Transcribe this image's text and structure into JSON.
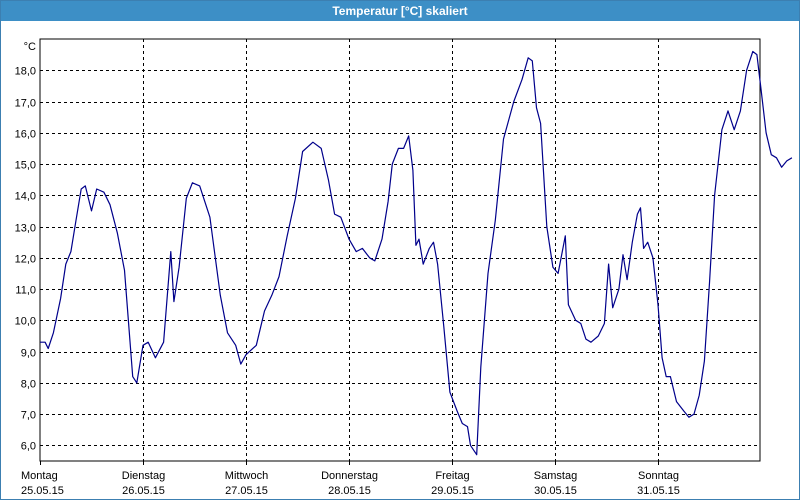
{
  "window": {
    "title": "Temperatur [°C] skaliert"
  },
  "colors": {
    "titlebar": "#3d8fc6",
    "line": "#00008b",
    "grid": "#000000"
  },
  "chart_data": {
    "type": "line",
    "title": "Temperatur [°C] skaliert",
    "ylabel": "°C",
    "ylim": [
      5.5,
      19.0
    ],
    "yticks": [
      6.0,
      7.0,
      8.0,
      9.0,
      10.0,
      11.0,
      12.0,
      13.0,
      14.0,
      15.0,
      16.0,
      17.0,
      18.0
    ],
    "ytick_labels": [
      "6,0",
      "7,0",
      "8,0",
      "9,0",
      "10,0",
      "11,0",
      "12,0",
      "13,0",
      "14,0",
      "15,0",
      "16,0",
      "17,0",
      "18,0"
    ],
    "xlim": [
      0,
      7
    ],
    "grid": true,
    "xticks": [
      {
        "day": "Montag",
        "date": "25.05.15"
      },
      {
        "day": "Dienstag",
        "date": "26.05.15"
      },
      {
        "day": "Mittwoch",
        "date": "27.05.15"
      },
      {
        "day": "Donnerstag",
        "date": "28.05.15"
      },
      {
        "day": "Freitag",
        "date": "29.05.15"
      },
      {
        "day": "Samstag",
        "date": "30.05.15"
      },
      {
        "day": "Sonntag",
        "date": "31.05.15"
      }
    ],
    "series": [
      {
        "points": [
          [
            0.0,
            9.3
          ],
          [
            0.05,
            9.3
          ],
          [
            0.08,
            9.1
          ],
          [
            0.13,
            9.6
          ],
          [
            0.2,
            10.7
          ],
          [
            0.25,
            11.8
          ],
          [
            0.3,
            12.2
          ],
          [
            0.35,
            13.2
          ],
          [
            0.4,
            14.2
          ],
          [
            0.44,
            14.3
          ],
          [
            0.5,
            13.5
          ],
          [
            0.55,
            14.2
          ],
          [
            0.62,
            14.1
          ],
          [
            0.68,
            13.7
          ],
          [
            0.75,
            12.8
          ],
          [
            0.82,
            11.6
          ],
          [
            0.9,
            8.2
          ],
          [
            0.94,
            8.0
          ],
          [
            1.0,
            9.2
          ],
          [
            1.05,
            9.3
          ],
          [
            1.12,
            8.8
          ],
          [
            1.2,
            9.3
          ],
          [
            1.27,
            12.2
          ],
          [
            1.3,
            10.6
          ],
          [
            1.35,
            11.7
          ],
          [
            1.42,
            13.9
          ],
          [
            1.48,
            14.4
          ],
          [
            1.55,
            14.3
          ],
          [
            1.65,
            13.3
          ],
          [
            1.75,
            10.8
          ],
          [
            1.82,
            9.6
          ],
          [
            1.9,
            9.2
          ],
          [
            1.95,
            8.6
          ],
          [
            2.0,
            8.9
          ],
          [
            2.1,
            9.2
          ],
          [
            2.18,
            10.3
          ],
          [
            2.25,
            10.8
          ],
          [
            2.32,
            11.4
          ],
          [
            2.4,
            12.7
          ],
          [
            2.48,
            13.9
          ],
          [
            2.55,
            15.4
          ],
          [
            2.65,
            15.7
          ],
          [
            2.73,
            15.5
          ],
          [
            2.8,
            14.5
          ],
          [
            2.86,
            13.4
          ],
          [
            2.92,
            13.3
          ],
          [
            3.0,
            12.6
          ],
          [
            3.07,
            12.2
          ],
          [
            3.13,
            12.3
          ],
          [
            3.2,
            12.0
          ],
          [
            3.25,
            11.9
          ],
          [
            3.32,
            12.6
          ],
          [
            3.38,
            13.8
          ],
          [
            3.42,
            15.0
          ],
          [
            3.48,
            15.5
          ],
          [
            3.53,
            15.5
          ],
          [
            3.58,
            15.9
          ],
          [
            3.62,
            14.8
          ],
          [
            3.65,
            12.4
          ],
          [
            3.68,
            12.6
          ],
          [
            3.72,
            11.8
          ],
          [
            3.78,
            12.3
          ],
          [
            3.82,
            12.5
          ],
          [
            3.86,
            11.8
          ],
          [
            3.92,
            9.8
          ],
          [
            3.98,
            7.7
          ],
          [
            4.05,
            7.1
          ],
          [
            4.1,
            6.7
          ],
          [
            4.15,
            6.6
          ],
          [
            4.18,
            6.0
          ],
          [
            4.24,
            5.7
          ],
          [
            4.28,
            8.5
          ],
          [
            4.35,
            11.5
          ],
          [
            4.42,
            13.2
          ],
          [
            4.5,
            15.8
          ],
          [
            4.6,
            17.0
          ],
          [
            4.68,
            17.7
          ],
          [
            4.74,
            18.4
          ],
          [
            4.78,
            18.3
          ],
          [
            4.82,
            16.8
          ],
          [
            4.86,
            16.3
          ],
          [
            4.92,
            13.0
          ],
          [
            4.98,
            11.7
          ],
          [
            5.03,
            11.5
          ],
          [
            5.1,
            12.7
          ],
          [
            5.13,
            10.5
          ],
          [
            5.2,
            10.0
          ],
          [
            5.25,
            9.9
          ],
          [
            5.3,
            9.4
          ],
          [
            5.35,
            9.3
          ],
          [
            5.42,
            9.5
          ],
          [
            5.48,
            9.9
          ],
          [
            5.52,
            11.8
          ],
          [
            5.56,
            10.4
          ],
          [
            5.62,
            11.0
          ],
          [
            5.66,
            12.1
          ],
          [
            5.7,
            11.3
          ],
          [
            5.75,
            12.5
          ],
          [
            5.8,
            13.4
          ],
          [
            5.83,
            13.6
          ],
          [
            5.86,
            12.3
          ],
          [
            5.9,
            12.5
          ],
          [
            5.95,
            12.0
          ],
          [
            6.0,
            10.5
          ],
          [
            6.04,
            8.8
          ],
          [
            6.08,
            8.2
          ],
          [
            6.12,
            8.2
          ],
          [
            6.18,
            7.4
          ],
          [
            6.25,
            7.1
          ],
          [
            6.3,
            6.9
          ],
          [
            6.35,
            7.0
          ],
          [
            6.4,
            7.6
          ],
          [
            6.45,
            8.7
          ],
          [
            6.5,
            11.2
          ],
          [
            6.55,
            14.0
          ],
          [
            6.62,
            16.1
          ],
          [
            6.68,
            16.7
          ],
          [
            6.74,
            16.1
          ],
          [
            6.8,
            16.7
          ],
          [
            6.86,
            18.0
          ],
          [
            6.92,
            18.6
          ],
          [
            6.96,
            18.5
          ],
          [
            7.0,
            17.4
          ],
          [
            7.05,
            16.0
          ],
          [
            7.1,
            15.3
          ],
          [
            7.15,
            15.2
          ],
          [
            7.2,
            14.9
          ],
          [
            7.25,
            15.1
          ],
          [
            7.3,
            15.2
          ]
        ]
      }
    ]
  }
}
